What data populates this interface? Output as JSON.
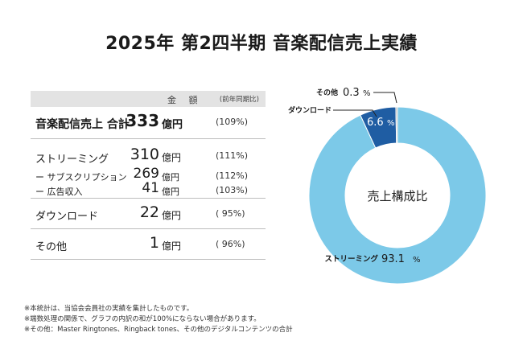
{
  "title": "2025年 第2四半期 音楽配信売上実績",
  "table": {
    "header_amount": "金 額",
    "header_yoy": "(前年同期比)",
    "rows": {
      "total": {
        "label": "音楽配信売上 合計",
        "value": "333",
        "unit": "億円",
        "yoy": "(109%)"
      },
      "streaming": {
        "label": "ストリーミング",
        "value": "310",
        "unit": "億円",
        "yoy": "(111%)"
      },
      "subscription": {
        "label": "ー サブスクリプション",
        "value": "269",
        "unit": "億円",
        "yoy": "(112%)"
      },
      "ads": {
        "label": "ー 広告収入",
        "value": "41",
        "unit": "億円",
        "yoy": "(103%)"
      },
      "download": {
        "label": "ダウンロード",
        "value": "22",
        "unit": "億円",
        "yoy": "( 95%)"
      },
      "other": {
        "label": "その他",
        "value": "1",
        "unit": "億円",
        "yoy": "( 96%)"
      }
    }
  },
  "chart_data": {
    "type": "pie",
    "center_label": "売上構成比",
    "slices": [
      {
        "name": "ストリーミング",
        "value": 93.1,
        "label": "93.1",
        "color": "#7cc9e8"
      },
      {
        "name": "ダウンロード",
        "value": 6.6,
        "label": "6.6",
        "color": "#1f5da3"
      },
      {
        "name": "その他",
        "value": 0.3,
        "label": "0.3",
        "color": "#b0b0b0"
      }
    ],
    "percent_sign": "%"
  },
  "notes": [
    "※本統計は、当協会会員社の実績を集計したものです。",
    "※端数処理の関係で、グラフの内訳の和が100%にならない場合があります。",
    "※その他：Master Ringtones、Ringback tones、その他のデジタルコンテンツの合計"
  ]
}
